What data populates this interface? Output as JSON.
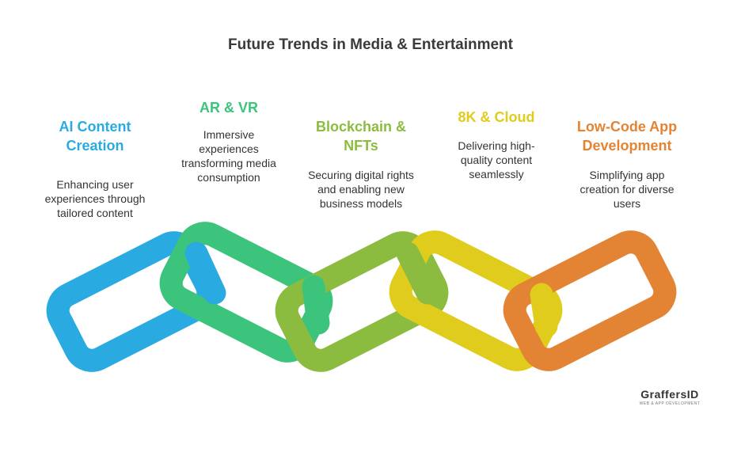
{
  "title": "Future Trends in Media & Entertainment",
  "items": [
    {
      "title": "AI Content Creation",
      "description": "Enhancing user experiences through tailored content",
      "color": "#29abe2"
    },
    {
      "title": "AR & VR",
      "description": "Immersive experiences transforming media consumption",
      "color": "#3cc47c"
    },
    {
      "title": "Blockchain & NFTs",
      "description": "Securing digital rights and enabling new business models",
      "color": "#8cbc3f"
    },
    {
      "title": "8K & Cloud",
      "description": "Delivering high-quality content seamlessly",
      "color": "#e0cc1c"
    },
    {
      "title": "Low-Code App Development",
      "description": "Simplifying app creation for diverse users",
      "color": "#e38434"
    }
  ],
  "logo": {
    "name": "GraffersID",
    "tagline": "WEB & APP DEVELOPMENT"
  }
}
